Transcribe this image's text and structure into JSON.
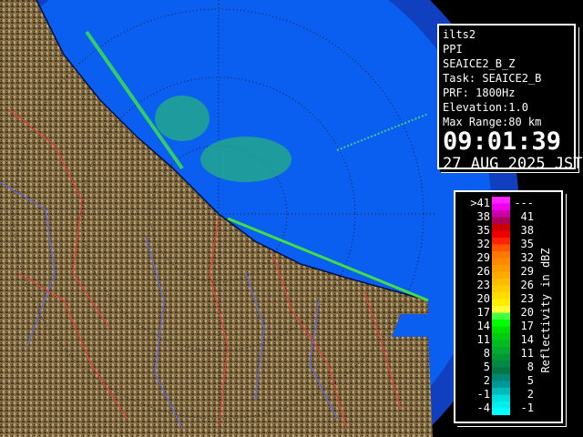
{
  "info": {
    "radar": "ilts2",
    "scan_type": "PPI",
    "product": "SEAICE2_B_Z",
    "task": "Task: SEAICE2_B",
    "prf": "PRF: 1800Hz",
    "elevation": "Elevation:1.0",
    "max_range": "Max Range:80 km",
    "time": "09:01:39",
    "date": "27 AUG 2025 JST"
  },
  "legend": {
    "unit_label": "Reflectivity in dBZ",
    "rows": [
      {
        "low": ">41",
        "high": "---",
        "colors": [
          "#ff22ff",
          "#ee00ee"
        ]
      },
      {
        "low": "38",
        "high": "41",
        "colors": [
          "#cc00aa",
          "#aa0055"
        ]
      },
      {
        "low": "35",
        "high": "38",
        "colors": [
          "#cc0000",
          "#ee0000"
        ]
      },
      {
        "low": "32",
        "high": "35",
        "colors": [
          "#ff2200",
          "#ff5500"
        ]
      },
      {
        "low": "29",
        "high": "32",
        "colors": [
          "#ff7700",
          "#ff8800"
        ]
      },
      {
        "low": "26",
        "high": "29",
        "colors": [
          "#ff9900",
          "#ffaa00"
        ]
      },
      {
        "low": "23",
        "high": "26",
        "colors": [
          "#ffbb00",
          "#ffcc00"
        ]
      },
      {
        "low": "20",
        "high": "23",
        "colors": [
          "#ffdd00",
          "#ffee00"
        ]
      },
      {
        "low": "17",
        "high": "20",
        "colors": [
          "#ffff33",
          "#44ff44"
        ]
      },
      {
        "low": "14",
        "high": "17",
        "colors": [
          "#00ff00",
          "#00e000"
        ]
      },
      {
        "low": "11",
        "high": "14",
        "colors": [
          "#00cc11",
          "#00bb22"
        ]
      },
      {
        "low": "8",
        "high": "11",
        "colors": [
          "#00aa33",
          "#009933"
        ]
      },
      {
        "low": "5",
        "high": "8",
        "colors": [
          "#008844",
          "#007744"
        ]
      },
      {
        "low": "2",
        "high": "5",
        "colors": [
          "#008877",
          "#009999"
        ]
      },
      {
        "low": "-1",
        "high": "2",
        "colors": [
          "#00bbbb",
          "#00dddd"
        ]
      },
      {
        "low": "-4",
        "high": "-1",
        "colors": [
          "#00eeee",
          "#00ffff"
        ]
      }
    ]
  },
  "colors": {
    "ocean": "#0a5ef0",
    "outer": "#1040c0",
    "terrain": "#7a6440",
    "rivers": "#ff3333",
    "coast": "#3344ff"
  }
}
